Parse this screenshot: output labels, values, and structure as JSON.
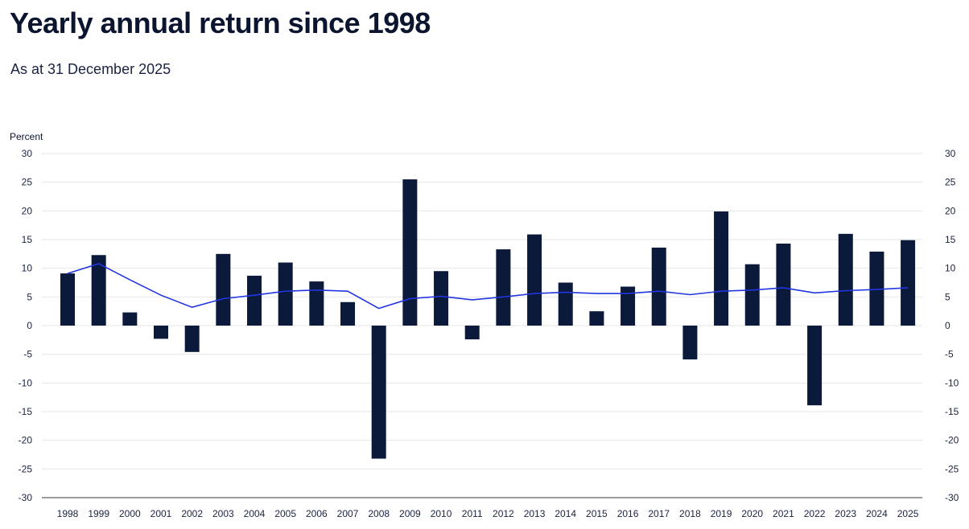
{
  "header": {
    "title": "Yearly annual return since 1998",
    "subtitle": "As at 31 December 2025"
  },
  "colors": {
    "bar": "#0b1a3a",
    "line": "#2135e0",
    "grid": "#e6e6e6",
    "axis": "#7a7a7a"
  },
  "chart_data": {
    "type": "bar",
    "title": "Yearly annual return since 1998",
    "subtitle": "As at 31 December 2025",
    "ylabel": "Percent",
    "ylim": [
      -30,
      30
    ],
    "yticks": [
      30,
      25,
      20,
      15,
      10,
      5,
      0,
      -5,
      -10,
      -15,
      -20,
      -25,
      -30
    ],
    "grid": true,
    "secondary_y_axis_labels": true,
    "categories": [
      "1998",
      "1999",
      "2000",
      "2001",
      "2002",
      "2003",
      "2004",
      "2005",
      "2006",
      "2007",
      "2008",
      "2009",
      "2010",
      "2011",
      "2012",
      "2013",
      "2014",
      "2015",
      "2016",
      "2017",
      "2018",
      "2019",
      "2020",
      "2021",
      "2022",
      "2023",
      "2024",
      "2025"
    ],
    "series": [
      {
        "type": "bar",
        "values": [
          9.1,
          12.3,
          2.3,
          -2.3,
          -4.6,
          12.5,
          8.7,
          11.0,
          7.7,
          4.1,
          -23.2,
          25.5,
          9.5,
          -2.4,
          13.3,
          15.9,
          7.5,
          2.5,
          6.8,
          13.6,
          -5.9,
          19.9,
          10.7,
          14.3,
          -13.9,
          16.0,
          12.9,
          14.9
        ]
      },
      {
        "type": "line",
        "values": [
          9.1,
          10.8,
          8.0,
          5.3,
          3.2,
          4.7,
          5.3,
          6.0,
          6.2,
          6.0,
          3.0,
          4.7,
          5.1,
          4.5,
          5.0,
          5.6,
          5.8,
          5.6,
          5.6,
          6.0,
          5.4,
          6.0,
          6.2,
          6.6,
          5.7,
          6.1,
          6.3,
          6.6
        ]
      }
    ]
  }
}
